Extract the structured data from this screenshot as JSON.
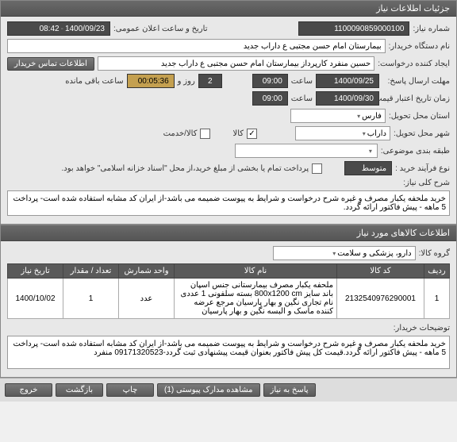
{
  "panels": {
    "need_info": "جزئیات اطلاعات نیاز",
    "goods_info": "اطلاعات کالاهای مورد نیاز"
  },
  "labels": {
    "need_no": "شماره نیاز:",
    "announce_dt": "تاریخ و ساعت اعلان عمومی:",
    "buyer": "نام دستگاه خریدار:",
    "req_creator": "ایجاد کننده درخواست:",
    "contact_btn": "اطلاعات تماس خریدار",
    "deadline": "مهلت ارسال پاسخ:",
    "to_word": "تا تاریخ:",
    "saat": "ساعت",
    "rooz_o": "روز و",
    "remain": "ساعت باقی مانده",
    "validity": "زمان تاریخ اعتبار قیمت تا تاریخ:",
    "province": "استان محل تحویل:",
    "city": "شهر محل تحویل:",
    "kala_khedmat": "کالا/خدمت",
    "kala": "کالا",
    "category": "طبقه بندی موضوعی:",
    "process_type": "نوع فرآیند خرید :",
    "pay_note": "پرداخت تمام یا بخشی از مبلغ خرید،از محل \"اسناد خزانه اسلامی\" خواهد بود.",
    "general_desc": "شرح کلی نیاز:",
    "goods_group": "گروه کالا:",
    "buyer_notes": "توضیحات خریدار:"
  },
  "values": {
    "need_no": "1100090859000100",
    "announce_date": "1400/09/23",
    "announce_time": "08:42",
    "buyer": "بیمارستان امام حسن مجتبی  ع  داراب جدید",
    "req_creator": "حسین  منفرد کارپرداز بیمارستان امام حسن مجتبی  ع  داراب جدید",
    "deadline_date": "1400/09/25",
    "deadline_time": "09:00",
    "remain_days": "2",
    "remain_time": "00:05:36",
    "validity_date": "1400/09/30",
    "validity_time": "09:00",
    "province": "فارس",
    "city": "داراب",
    "process_type": "متوسط",
    "general_desc": "خرید ملحفه یکبار مصرف و غیره شرح درخواست و شرایط به پیوست ضمیمه می باشد-از ایران کد مشابه استفاده شده است- پرداخت 5 ماهه - پیش فاکتور ارائه گردد.",
    "goods_group": "دارو، پزشکی و سلامت",
    "buyer_notes": "خرید ملحفه یکبار مصرف و غیره شرح درخواست و شرایط به پیوست ضمیمه می باشد-از ایران کد مشابه استفاده شده است- پرداخت 5 ماهه - پیش فاکتور ارائه گردد.قیمت کل پیش فاکتور بعنوان قیمت پیشنهادی ثبت گردد-09171320523 منفرد"
  },
  "table": {
    "headers": [
      "ردیف",
      "کد کالا",
      "نام کالا",
      "واحد شمارش",
      "تعداد / مقدار",
      "تاریخ نیاز"
    ],
    "rows": [
      {
        "idx": "1",
        "code": "2132540976290001",
        "name": "ملحفه یکبار مصرف بیمارستانی جنس اسپان باند سایز 800x1200 cm بسته سلفونی 1 عددی نام تجاری نگین و بهار پارسیان مرجع عرضه کننده ماسک و البسه نگین و بهار پارسیان",
        "unit": "عدد",
        "qty": "1",
        "date": "1400/10/02"
      }
    ]
  },
  "footer": {
    "answer": "پاسخ به نیاز",
    "attach": "مشاهده مدارک پیوستی (1)",
    "print": "چاپ",
    "back": "بازگشت",
    "exit": "خروج"
  }
}
